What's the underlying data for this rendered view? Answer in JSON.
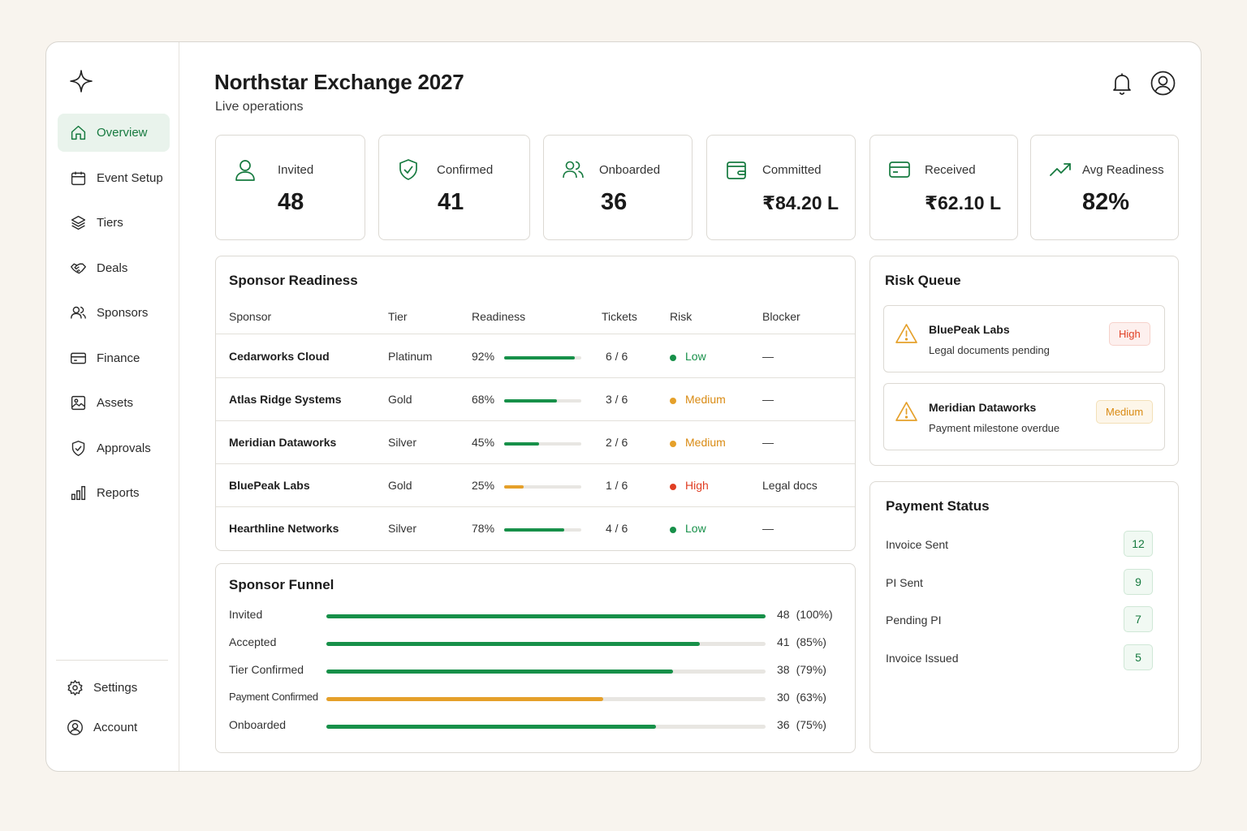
{
  "colors": {
    "accent": "#167a3f",
    "green": "#179049",
    "orange": "#e5a02a",
    "red": "#e03e23",
    "medium_text": "#d98a12"
  },
  "header": {
    "title": "Northstar Exchange 2027",
    "subtitle": "Live operations"
  },
  "sidebar": {
    "logo_icon": "sparkle-icon",
    "items": [
      {
        "label": "Overview",
        "icon": "home-icon",
        "active": true
      },
      {
        "label": "Event Setup",
        "icon": "calendar-icon"
      },
      {
        "label": "Tiers",
        "icon": "layers-icon"
      },
      {
        "label": "Deals",
        "icon": "handshake-icon"
      },
      {
        "label": "Sponsors",
        "icon": "users-icon"
      },
      {
        "label": "Finance",
        "icon": "credit-card-icon"
      },
      {
        "label": "Assets",
        "icon": "image-icon"
      },
      {
        "label": "Approvals",
        "icon": "shield-check-icon"
      },
      {
        "label": "Reports",
        "icon": "bar-chart-icon"
      }
    ],
    "bottom": [
      {
        "label": "Settings",
        "icon": "gear-icon"
      },
      {
        "label": "Account",
        "icon": "user-circle-icon"
      }
    ]
  },
  "stats": [
    {
      "label": "Invited",
      "value": "48",
      "icon": "user-icon"
    },
    {
      "label": "Confirmed",
      "value": "41",
      "icon": "shield-check-icon"
    },
    {
      "label": "Onboarded",
      "value": "36",
      "icon": "users-icon"
    },
    {
      "label": "Committed",
      "value": "₹84.20 L",
      "icon": "wallet-icon"
    },
    {
      "label": "Received",
      "value": "₹62.10 L",
      "icon": "credit-card-icon"
    },
    {
      "label": "Avg Readiness",
      "value": "82%",
      "icon": "trending-up-icon"
    }
  ],
  "readiness": {
    "title": "Sponsor Readiness",
    "columns": [
      "Sponsor",
      "Tier",
      "Readiness",
      "Tickets",
      "Risk",
      "Blocker"
    ],
    "rows": [
      {
        "sponsor": "Cedarworks Cloud",
        "tier": "Platinum",
        "readiness": "92%",
        "readiness_value": 92,
        "tickets": "6 / 6",
        "risk": "Low",
        "blocker": "—"
      },
      {
        "sponsor": "Atlas Ridge Systems",
        "tier": "Gold",
        "readiness": "68%",
        "readiness_value": 68,
        "tickets": "3 / 6",
        "risk": "Medium",
        "blocker": "—"
      },
      {
        "sponsor": "Meridian Dataworks",
        "tier": "Silver",
        "readiness": "45%",
        "readiness_value": 45,
        "tickets": "2 / 6",
        "risk": "Medium",
        "blocker": "—"
      },
      {
        "sponsor": "BluePeak Labs",
        "tier": "Gold",
        "readiness": "25%",
        "readiness_value": 25,
        "tickets": "1 / 6",
        "risk": "High",
        "blocker": "Legal docs"
      },
      {
        "sponsor": "Hearthline Networks",
        "tier": "Silver",
        "readiness": "78%",
        "readiness_value": 78,
        "tickets": "4 / 6",
        "risk": "Low",
        "blocker": "—"
      }
    ]
  },
  "funnel": {
    "title": "Sponsor Funnel",
    "stages": [
      {
        "label": "Invited",
        "count": "48",
        "pct": "(100%)",
        "value": 100,
        "color": "green"
      },
      {
        "label": "Accepted",
        "count": "41",
        "pct": "(85%)",
        "value": 85,
        "color": "green"
      },
      {
        "label": "Tier Confirmed",
        "count": "38",
        "pct": "(79%)",
        "value": 79,
        "color": "green"
      },
      {
        "label": "Payment Confirmed",
        "count": "30",
        "pct": "(63%)",
        "value": 63,
        "color": "orange"
      },
      {
        "label": "Onboarded",
        "count": "36",
        "pct": "(75%)",
        "value": 75,
        "color": "green"
      }
    ]
  },
  "risk_queue": {
    "title": "Risk Queue",
    "items": [
      {
        "name": "BluePeak Labs",
        "desc": "Legal documents pending",
        "level": "High",
        "icon": "warning-icon"
      },
      {
        "name": "Meridian Dataworks",
        "desc": "Payment milestone overdue",
        "level": "Medium",
        "icon": "warning-icon"
      }
    ]
  },
  "payment_status": {
    "title": "Payment Status",
    "items": [
      {
        "label": "Invoice Sent",
        "count": "12"
      },
      {
        "label": "PI Sent",
        "count": "9"
      },
      {
        "label": "Pending PI",
        "count": "7"
      },
      {
        "label": "Invoice Issued",
        "count": "5"
      }
    ]
  }
}
